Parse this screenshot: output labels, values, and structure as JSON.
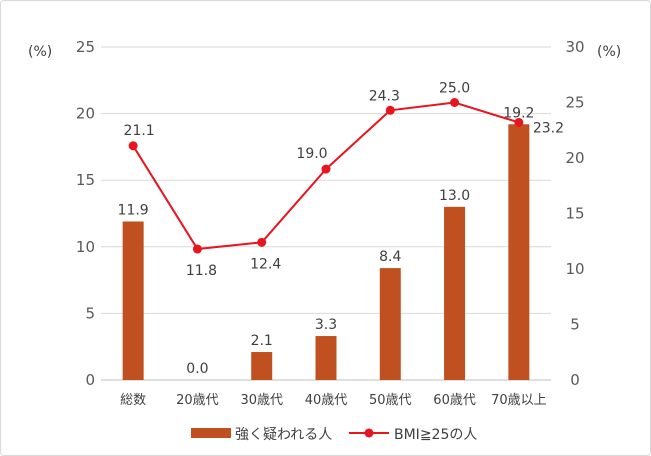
{
  "chart_data": {
    "type": "bar+line",
    "categories": [
      "総数",
      "20歳代",
      "30歳代",
      "40歳代",
      "50歳代",
      "60歳代",
      "70歳以上"
    ],
    "series": [
      {
        "name": "強く疑われる人",
        "type": "bar",
        "axis": "left",
        "color": "#c0501f",
        "values": [
          11.9,
          0.0,
          2.1,
          3.3,
          8.4,
          13.0,
          19.2
        ],
        "labels": [
          "11.9",
          "0.0",
          "2.1",
          "3.3",
          "8.4",
          "13.0",
          "19.2"
        ]
      },
      {
        "name": "BMI≧25の人",
        "type": "line",
        "axis": "right",
        "color": "#e8141e",
        "values": [
          21.1,
          11.8,
          12.4,
          19.0,
          24.3,
          25.0,
          23.2
        ],
        "labels": [
          "21.1",
          "11.8",
          "12.4",
          "19.0",
          "24.3",
          "25.0",
          "23.2"
        ]
      }
    ],
    "y_left": {
      "unit": "(%)",
      "ylim": [
        0,
        25
      ],
      "ticks": [
        "0",
        "5",
        "10",
        "15",
        "20",
        "25"
      ]
    },
    "y_right": {
      "unit": "(%)",
      "ylim": [
        0,
        30
      ],
      "ticks": [
        "0",
        "5",
        "10",
        "15",
        "20",
        "25",
        "30"
      ]
    },
    "grid": true,
    "legend_position": "bottom"
  }
}
